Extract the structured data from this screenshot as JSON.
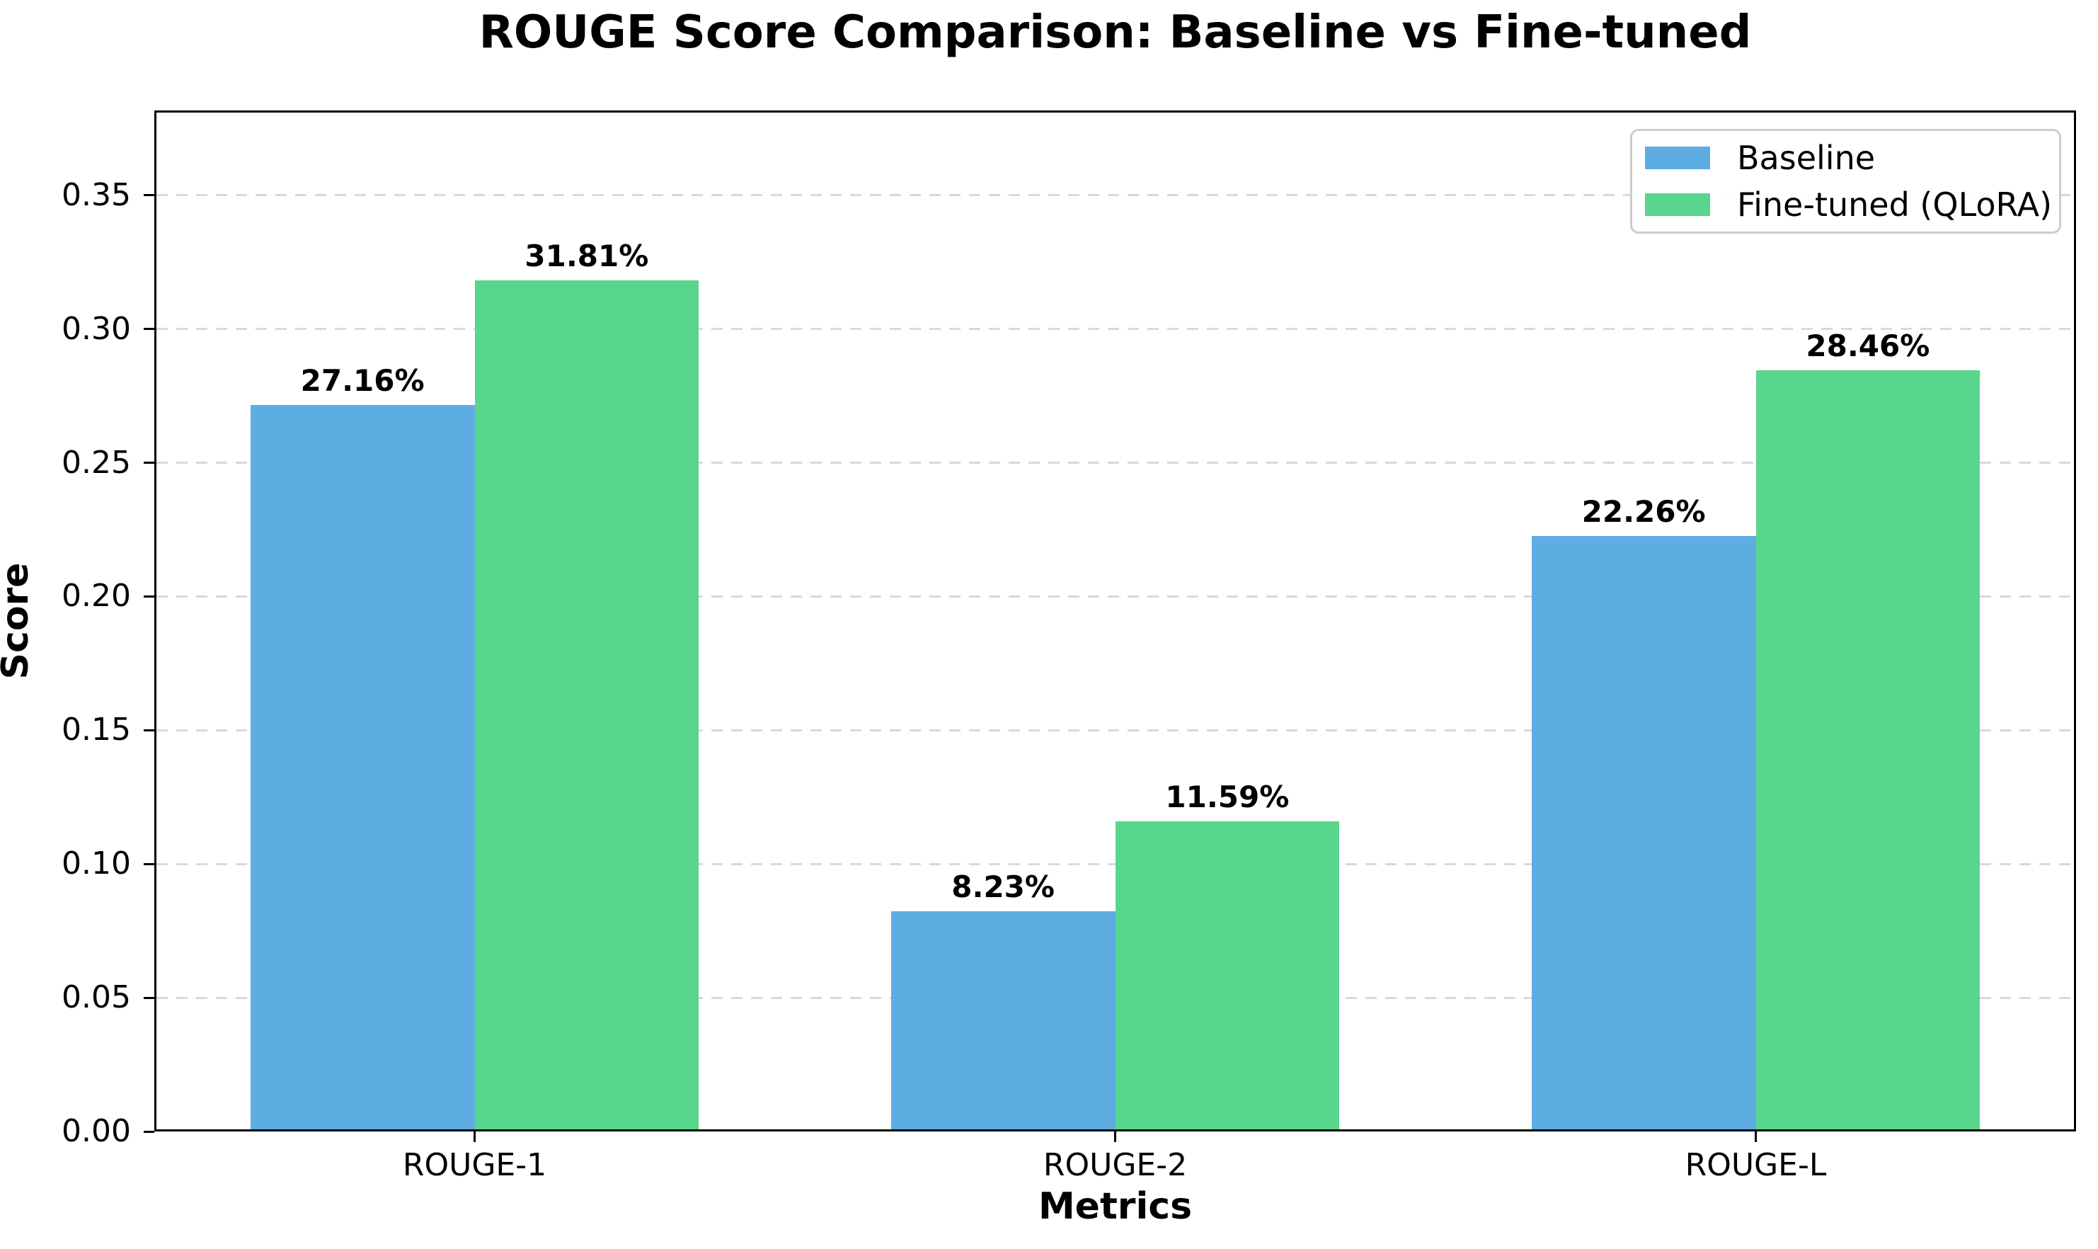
{
  "title": "ROUGE Score Comparison: Baseline vs Fine-tuned",
  "chart_data": {
    "type": "bar",
    "title": "ROUGE Score Comparison: Baseline vs Fine-tuned",
    "xlabel": "Metrics",
    "ylabel": "Score",
    "categories": [
      "ROUGE-1",
      "ROUGE-2",
      "ROUGE-L"
    ],
    "series": [
      {
        "name": "Baseline",
        "color": "#5DADE2",
        "values": [
          0.2716,
          0.0823,
          0.2226
        ],
        "value_labels": [
          "27.16%",
          "8.23%",
          "22.26%"
        ]
      },
      {
        "name": "Fine-tuned (QLoRA)",
        "color": "#58D68D",
        "values": [
          0.3181,
          0.1159,
          0.2846
        ],
        "value_labels": [
          "31.81%",
          "11.59%",
          "28.46%"
        ]
      }
    ],
    "ylim": [
      0,
      0.3817
    ],
    "yticks": [
      0.0,
      0.05,
      0.1,
      0.15,
      0.2,
      0.25,
      0.3,
      0.35
    ],
    "ytick_labels": [
      "0.00",
      "0.05",
      "0.10",
      "0.15",
      "0.20",
      "0.25",
      "0.30",
      "0.35"
    ],
    "bar_width_fraction": 0.35,
    "grid": "horizontal-dashed",
    "grid_color": "#d9d9d9",
    "legend_position": "upper-right",
    "spine_color": "#000000"
  }
}
